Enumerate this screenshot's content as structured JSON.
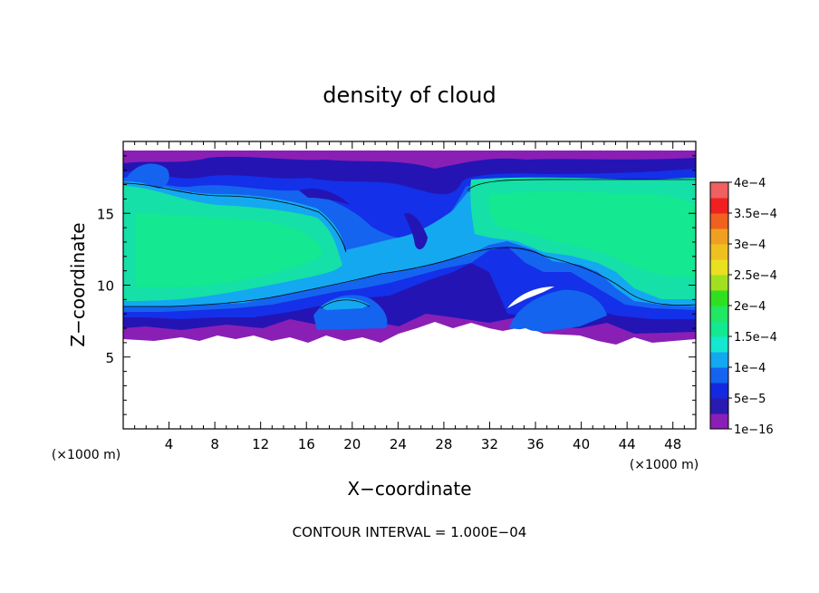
{
  "chart_data": {
    "type": "heatmap",
    "title": "density of cloud",
    "xlabel": "X−coordinate",
    "ylabel": "Z−coordinate",
    "x_unit_left": "(×1000 m)",
    "x_unit_right": "(×1000 m)",
    "xlim": [
      0,
      50
    ],
    "ylim": [
      0,
      20
    ],
    "x_ticks": [
      4,
      8,
      12,
      16,
      20,
      24,
      28,
      32,
      36,
      40,
      44,
      48
    ],
    "y_ticks": [
      5,
      10,
      15
    ],
    "footer": "CONTOUR INTERVAL = 1.000E−04",
    "colorbar": {
      "labels": [
        "1e−16",
        "5e−5",
        "1e−4",
        "1.5e−4",
        "2e−4",
        "2.5e−4",
        "3e−4",
        "3.5e−4",
        "4e−4"
      ],
      "colors": [
        "#8a1fb5",
        "#2a1ab0",
        "#1428e0",
        "#1464f0",
        "#14a8f0",
        "#14e8d0",
        "#14e890",
        "#20e860",
        "#30e020",
        "#a0e020",
        "#e8e020",
        "#f0c020",
        "#f0a020",
        "#f06020",
        "#f02020",
        "#f06060"
      ]
    },
    "regions": [
      {
        "name": "cloud-base",
        "z_range": [
          6.3,
          8.9
        ],
        "value": "1e-16 to 5e-5"
      },
      {
        "name": "left-core",
        "x_range": [
          0,
          22
        ],
        "z_range": [
          9.5,
          17
        ],
        "value": "1.5e-4"
      },
      {
        "name": "right-core",
        "x_range": [
          30,
          50
        ],
        "z_range": [
          11.5,
          17.6
        ],
        "value": "1.5e-4"
      },
      {
        "name": "cloud-top",
        "z_range": [
          17,
          19.5
        ],
        "value": "1e-16 to 5e-5"
      }
    ]
  }
}
